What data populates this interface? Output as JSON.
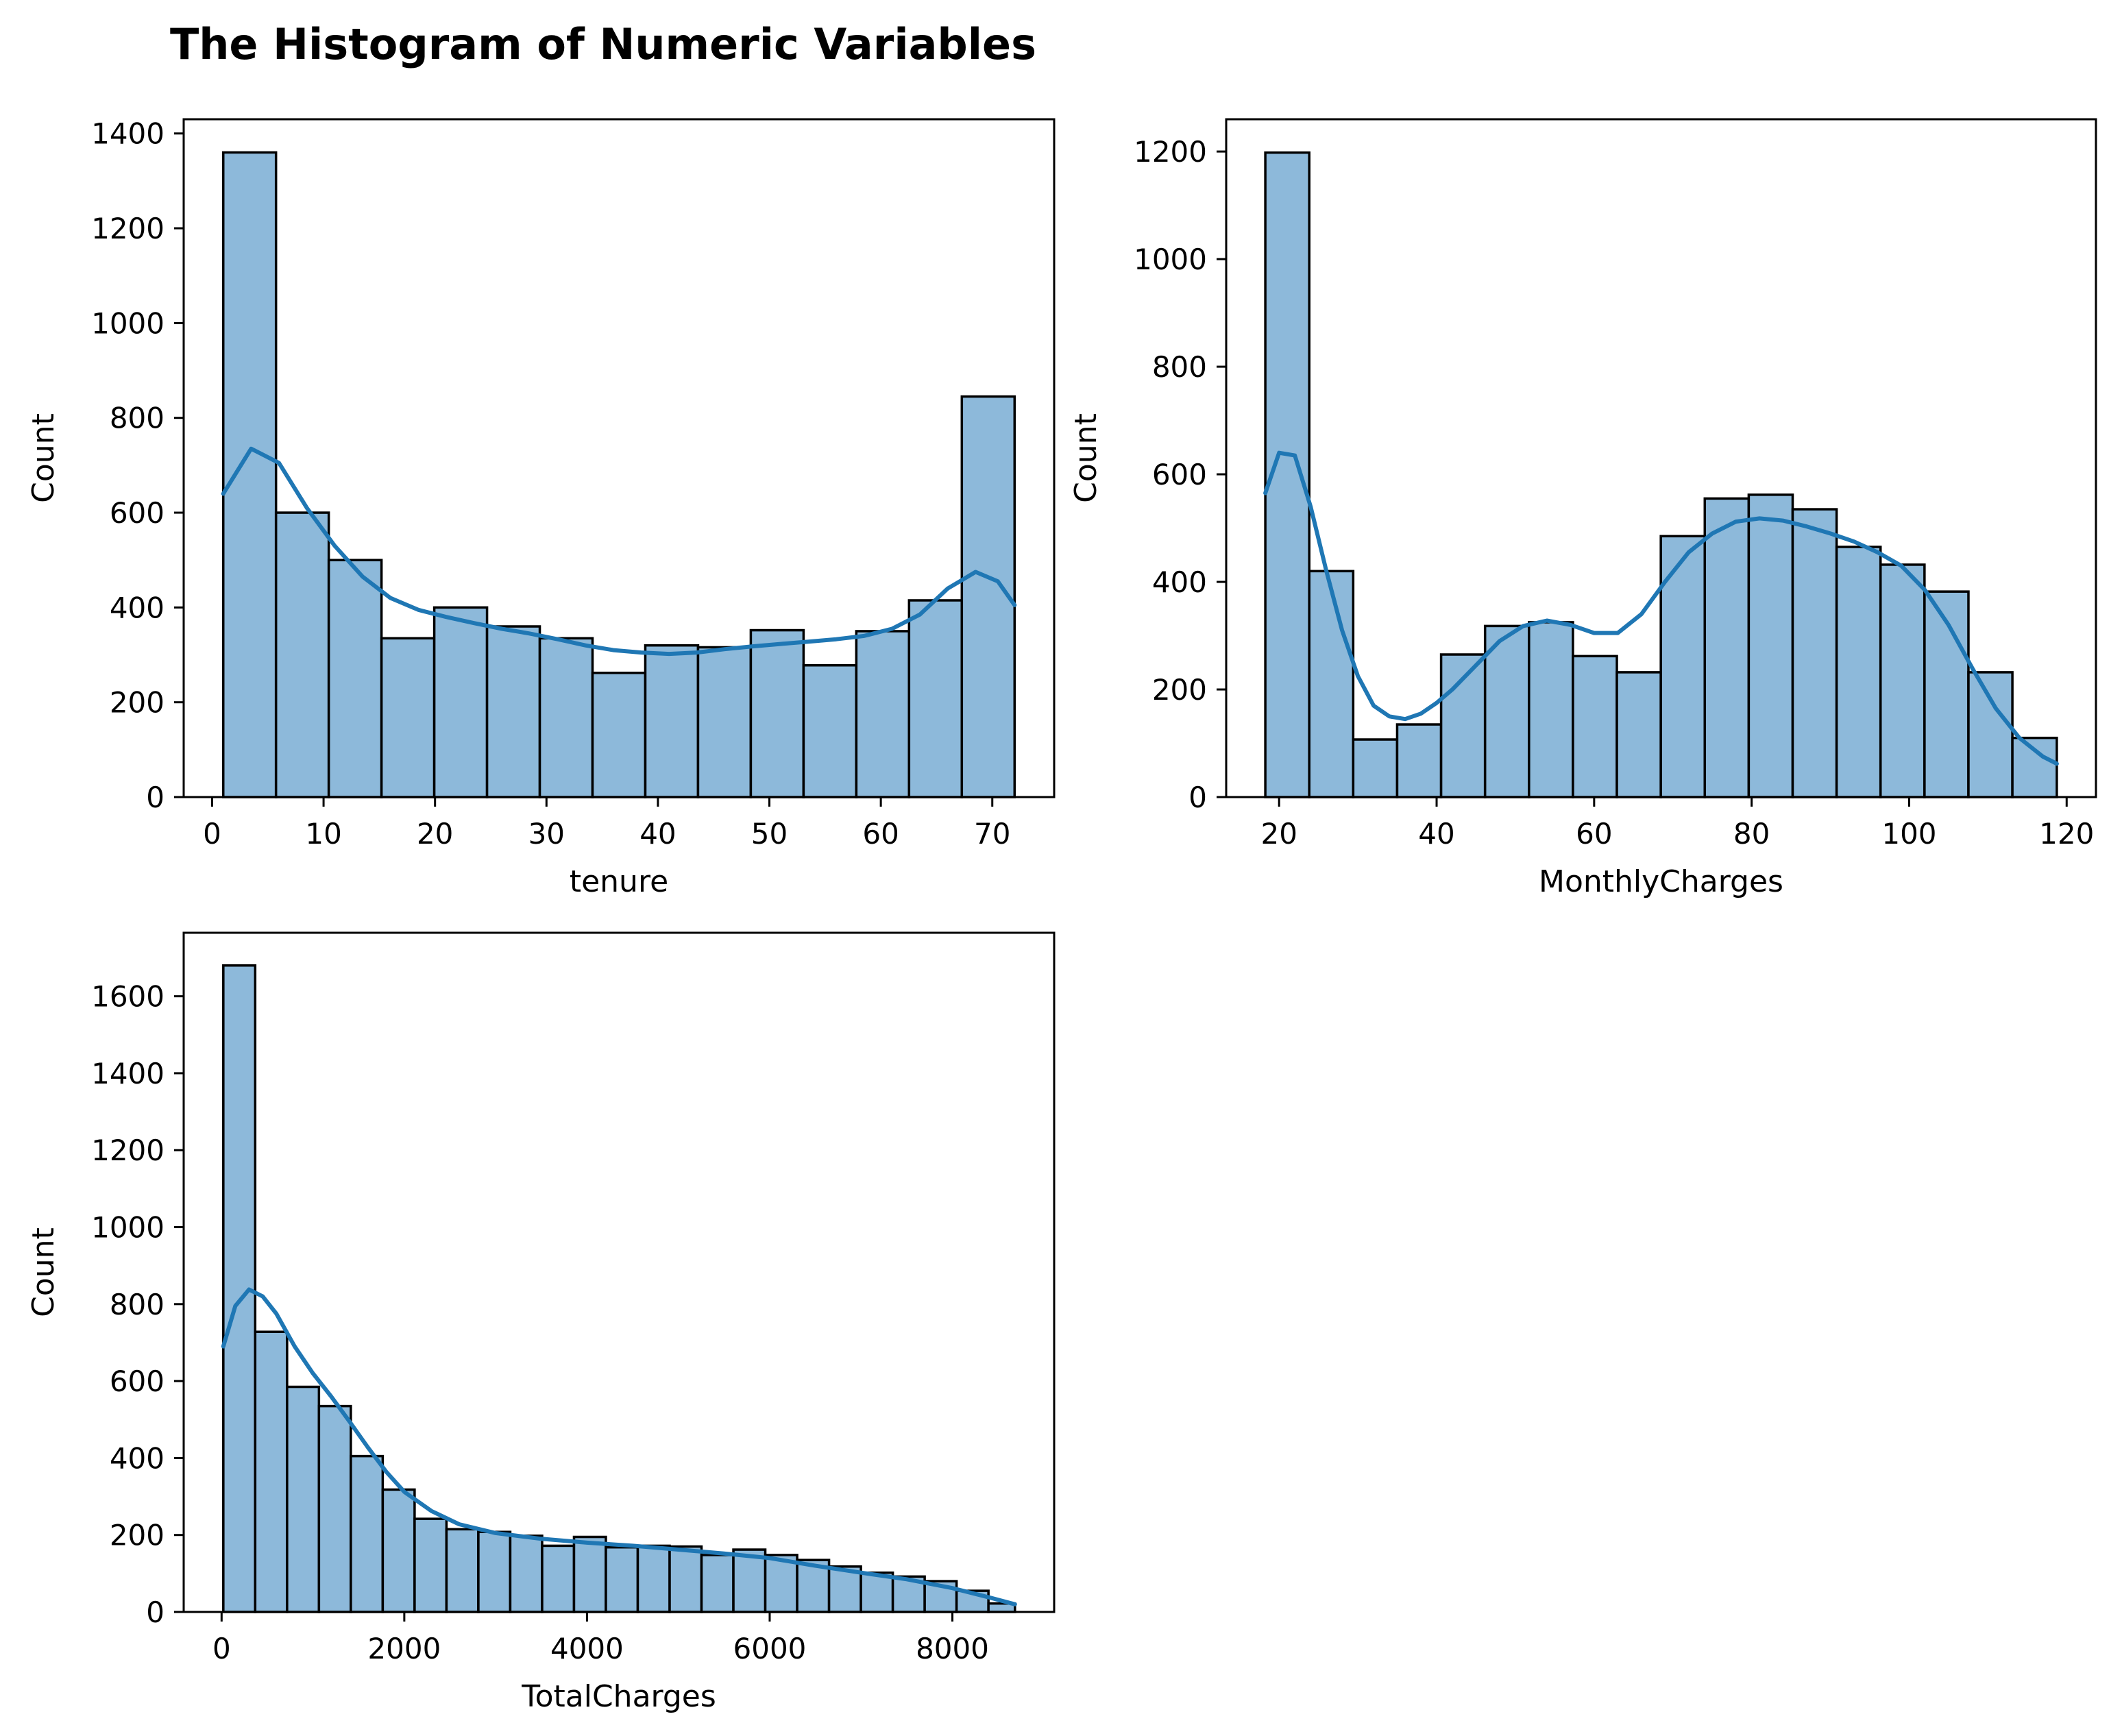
{
  "figure": {
    "title": "The Histogram of Numeric Variables"
  },
  "colors": {
    "bar_fill": "#8db9da",
    "bar_edge": "#000000",
    "kde_line": "#1f77b4"
  },
  "chart_data": [
    {
      "type": "bar",
      "subtype": "histogram-with-kde",
      "xlabel": "tenure",
      "ylabel": "Count",
      "xlim": [
        -2.55,
        75.55
      ],
      "ylim": [
        0,
        1430
      ],
      "xticks": [
        0,
        10,
        20,
        30,
        40,
        50,
        60,
        70
      ],
      "yticks": [
        0,
        200,
        400,
        600,
        800,
        1000,
        1200,
        1400
      ],
      "bin_edges": [
        1,
        5.733,
        10.467,
        15.2,
        19.933,
        24.667,
        29.4,
        34.133,
        38.867,
        43.6,
        48.333,
        53.067,
        57.8,
        62.533,
        67.267,
        72
      ],
      "counts": [
        1360,
        600,
        500,
        335,
        400,
        360,
        335,
        262,
        320,
        316,
        352,
        278,
        350,
        415,
        845
      ],
      "kde": {
        "x": [
          1,
          3.5,
          6,
          8.5,
          11,
          13.5,
          16,
          18.5,
          21,
          23.5,
          26,
          28.5,
          31,
          33.5,
          36,
          38.5,
          41,
          43.5,
          46,
          48.5,
          51,
          53.5,
          56,
          58.5,
          61,
          63.5,
          66,
          68.5,
          70.5,
          72
        ],
        "y": [
          640,
          735,
          705,
          610,
          530,
          465,
          420,
          395,
          380,
          367,
          355,
          345,
          333,
          320,
          310,
          305,
          302,
          305,
          312,
          318,
          323,
          328,
          333,
          340,
          355,
          385,
          440,
          475,
          455,
          405
        ]
      }
    },
    {
      "type": "bar",
      "subtype": "histogram-with-kde",
      "xlabel": "MonthlyCharges",
      "ylabel": "Count",
      "xlim": [
        13.28,
        123.72
      ],
      "ylim": [
        0,
        1260
      ],
      "xticks": [
        20,
        40,
        60,
        80,
        100,
        120
      ],
      "yticks": [
        0,
        200,
        400,
        600,
        800,
        1000,
        1200
      ],
      "bin_edges": [
        18.25,
        23.83,
        29.41,
        34.99,
        40.57,
        46.15,
        51.73,
        57.31,
        62.89,
        68.47,
        74.05,
        79.63,
        85.21,
        90.79,
        96.37,
        101.95,
        107.53,
        113.11,
        118.75
      ],
      "counts": [
        1198,
        420,
        107,
        135,
        265,
        318,
        325,
        262,
        232,
        485,
        555,
        562,
        535,
        465,
        432,
        382,
        232,
        110
      ],
      "kde": {
        "x": [
          18.25,
          20,
          22,
          24,
          26,
          28,
          30,
          32,
          34,
          36,
          38,
          40,
          42,
          45,
          48,
          51,
          54,
          57,
          60,
          63,
          66,
          69,
          72,
          75,
          78,
          81,
          84,
          87,
          90,
          93,
          96,
          99,
          102,
          105,
          108,
          111,
          114,
          117,
          118.75
        ],
        "y": [
          565,
          640,
          635,
          540,
          420,
          310,
          225,
          170,
          150,
          145,
          155,
          175,
          200,
          245,
          290,
          318,
          328,
          320,
          305,
          305,
          340,
          400,
          455,
          490,
          512,
          518,
          514,
          503,
          490,
          475,
          455,
          430,
          385,
          320,
          240,
          165,
          110,
          75,
          62
        ]
      }
    },
    {
      "type": "bar",
      "subtype": "histogram-with-kde",
      "xlabel": "TotalCharges",
      "ylabel": "Count",
      "xlim": [
        -415,
        9114
      ],
      "ylim": [
        0,
        1765
      ],
      "xticks": [
        0,
        2000,
        4000,
        6000,
        8000
      ],
      "yticks": [
        0,
        200,
        400,
        600,
        800,
        1000,
        1200,
        1400,
        1600
      ],
      "bin_edges": [
        18.8,
        367.8,
        716.8,
        1065.8,
        1414.8,
        1763.8,
        2112.8,
        2461.8,
        2810.8,
        3159.8,
        3508.8,
        3857.8,
        4206.8,
        4555.8,
        4904.8,
        5253.8,
        5602.8,
        5951.8,
        6300.8,
        6649.8,
        6998.8,
        7347.8,
        7696.8,
        8045.8,
        8394.8,
        8684.8
      ],
      "counts": [
        1680,
        728,
        585,
        535,
        405,
        318,
        242,
        215,
        208,
        198,
        172,
        195,
        168,
        172,
        170,
        148,
        162,
        148,
        135,
        118,
        102,
        92,
        80,
        55,
        22
      ],
      "kde": {
        "x": [
          18.8,
          150,
          300,
          450,
          600,
          800,
          1000,
          1200,
          1400,
          1600,
          1800,
          2000,
          2300,
          2600,
          3000,
          3500,
          4000,
          4500,
          5000,
          5500,
          6000,
          6500,
          7000,
          7500,
          8000,
          8400,
          8684.8
        ],
        "y": [
          690,
          795,
          838,
          820,
          775,
          690,
          620,
          560,
          495,
          428,
          365,
          312,
          262,
          228,
          205,
          190,
          180,
          172,
          162,
          152,
          140,
          120,
          102,
          85,
          62,
          38,
          20
        ]
      }
    }
  ]
}
